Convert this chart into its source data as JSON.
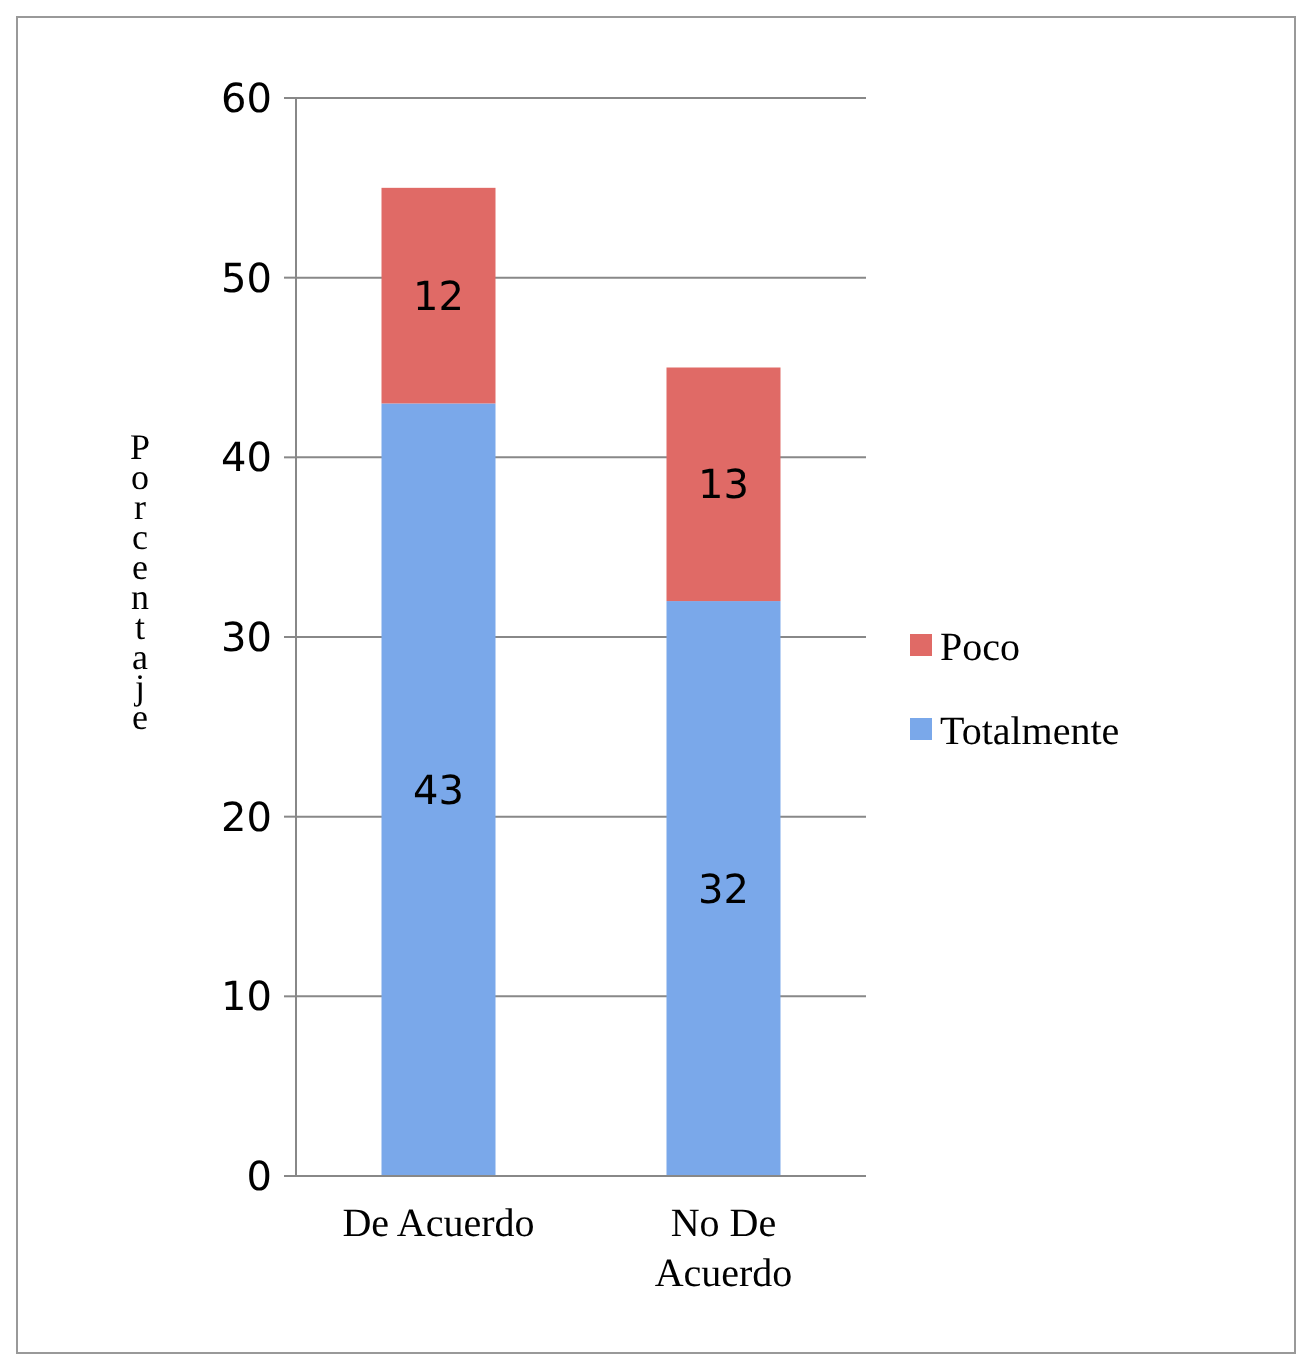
{
  "chart_data": {
    "type": "bar",
    "stacked": true,
    "ylabel": "Porcentaje",
    "categories": [
      "De Acuerdo",
      "No De Acuerdo"
    ],
    "series": [
      {
        "name": "Totalmente",
        "color": "#7aa8ea",
        "values": [
          43,
          32
        ]
      },
      {
        "name": "Poco",
        "color": "#e06a66",
        "values": [
          12,
          13
        ]
      }
    ],
    "ylim": [
      0,
      60
    ],
    "yticks": [
      0,
      10,
      20,
      30,
      40,
      50,
      60
    ],
    "grid": "y",
    "legend": "right",
    "data_labels": true
  }
}
